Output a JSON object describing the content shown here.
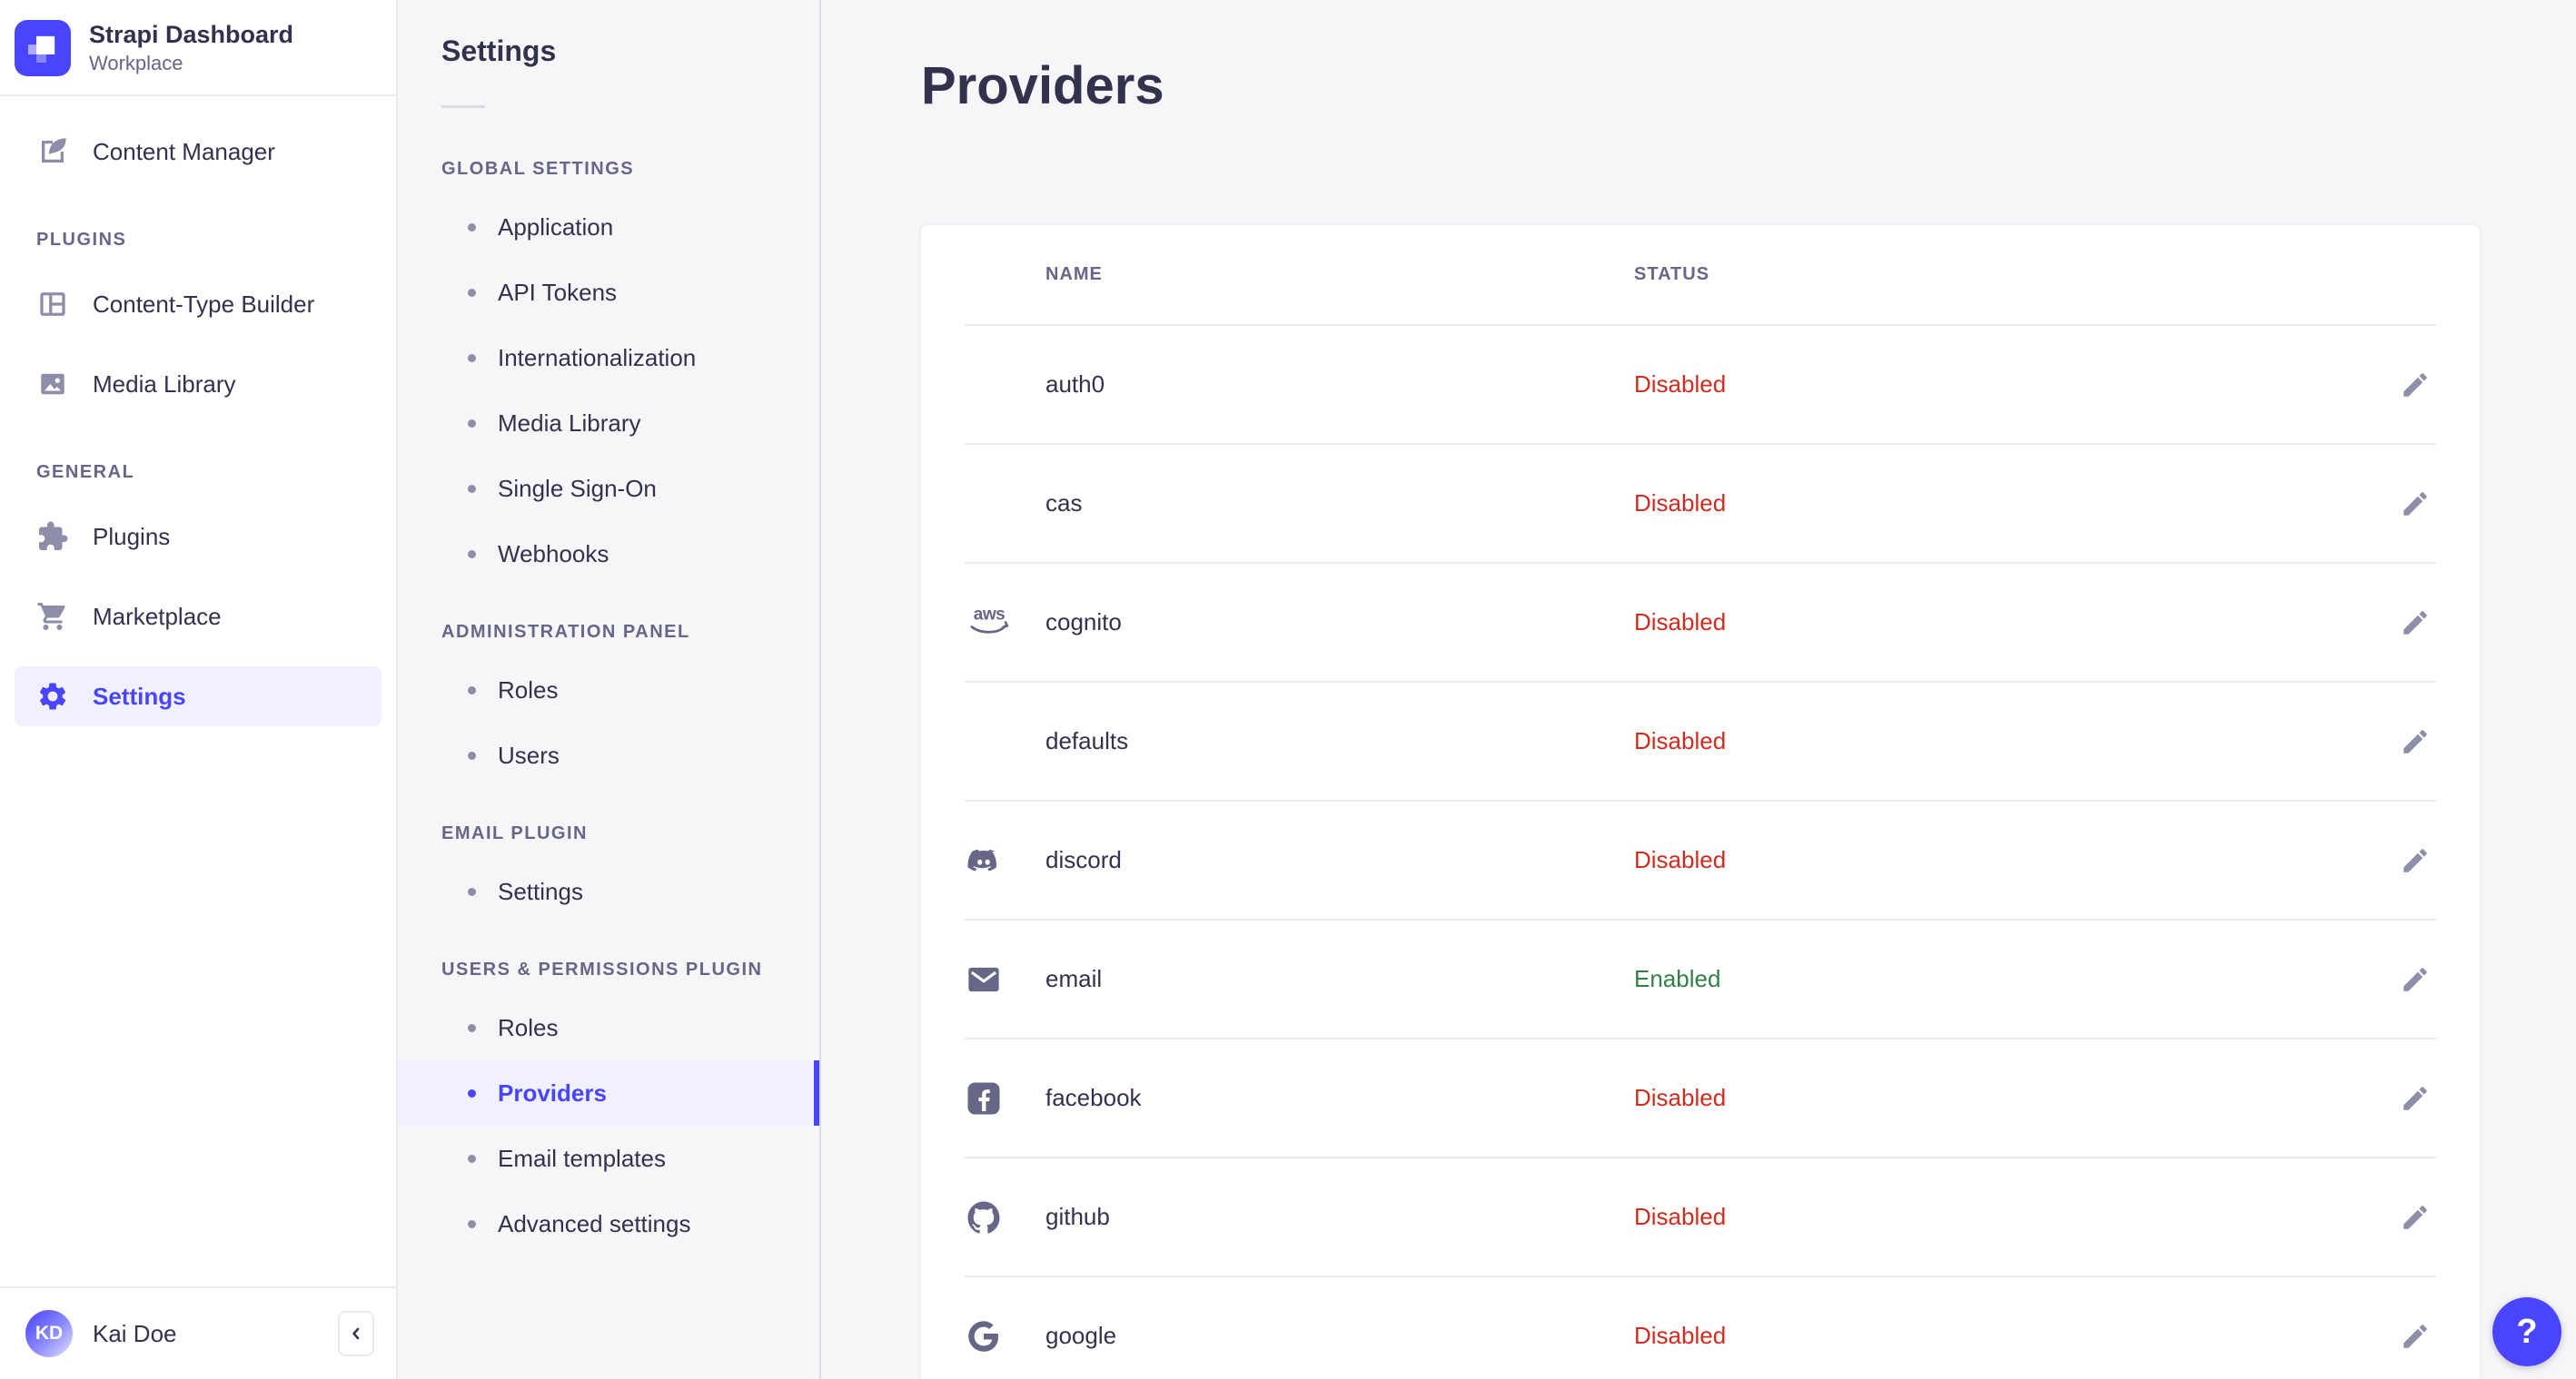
{
  "app": {
    "title": "Strapi Dashboard",
    "subtitle": "Workplace"
  },
  "sidebar": {
    "content_manager": {
      "label": "Content Manager",
      "icon": "content-manager-icon"
    },
    "sections": [
      {
        "label": "PLUGINS",
        "items": [
          {
            "label": "Content-Type Builder",
            "icon": "content-type-builder-icon",
            "active": false
          },
          {
            "label": "Media Library",
            "icon": "media-library-icon",
            "active": false
          }
        ]
      },
      {
        "label": "GENERAL",
        "items": [
          {
            "label": "Plugins",
            "icon": "plugins-icon",
            "active": false
          },
          {
            "label": "Marketplace",
            "icon": "marketplace-icon",
            "active": false
          },
          {
            "label": "Settings",
            "icon": "settings-icon",
            "active": true
          }
        ]
      }
    ],
    "user": {
      "initials": "KD",
      "name": "Kai Doe"
    }
  },
  "settings_panel": {
    "title": "Settings",
    "sections": [
      {
        "label": "GLOBAL SETTINGS",
        "items": [
          {
            "label": "Application",
            "active": false
          },
          {
            "label": "API Tokens",
            "active": false
          },
          {
            "label": "Internationalization",
            "active": false
          },
          {
            "label": "Media Library",
            "active": false
          },
          {
            "label": "Single Sign-On",
            "active": false
          },
          {
            "label": "Webhooks",
            "active": false
          }
        ]
      },
      {
        "label": "ADMINISTRATION PANEL",
        "items": [
          {
            "label": "Roles",
            "active": false
          },
          {
            "label": "Users",
            "active": false
          }
        ]
      },
      {
        "label": "EMAIL PLUGIN",
        "items": [
          {
            "label": "Settings",
            "active": false
          }
        ]
      },
      {
        "label": "USERS & PERMISSIONS PLUGIN",
        "items": [
          {
            "label": "Roles",
            "active": false
          },
          {
            "label": "Providers",
            "active": true
          },
          {
            "label": "Email templates",
            "active": false
          },
          {
            "label": "Advanced settings",
            "active": false
          }
        ]
      }
    ]
  },
  "main": {
    "title": "Providers",
    "table": {
      "columns": [
        "NAME",
        "STATUS"
      ],
      "rows": [
        {
          "name": "auth0",
          "icon": null,
          "status": "Disabled"
        },
        {
          "name": "cas",
          "icon": null,
          "status": "Disabled"
        },
        {
          "name": "cognito",
          "icon": "aws-icon",
          "status": "Disabled"
        },
        {
          "name": "defaults",
          "icon": null,
          "status": "Disabled"
        },
        {
          "name": "discord",
          "icon": "discord-icon",
          "status": "Disabled"
        },
        {
          "name": "email",
          "icon": "email-icon",
          "status": "Enabled"
        },
        {
          "name": "facebook",
          "icon": "facebook-icon",
          "status": "Disabled"
        },
        {
          "name": "github",
          "icon": "github-icon",
          "status": "Disabled"
        },
        {
          "name": "google",
          "icon": "google-icon",
          "status": "Disabled"
        }
      ]
    }
  },
  "help": {
    "label": "?"
  },
  "colors": {
    "accent": "#4945ff",
    "accent_bg": "#f0f0ff",
    "danger": "#d02b20",
    "success": "#328048",
    "text": "#32324d",
    "muted": "#666687",
    "border": "#eaeaef",
    "background": "#f6f6f9"
  }
}
